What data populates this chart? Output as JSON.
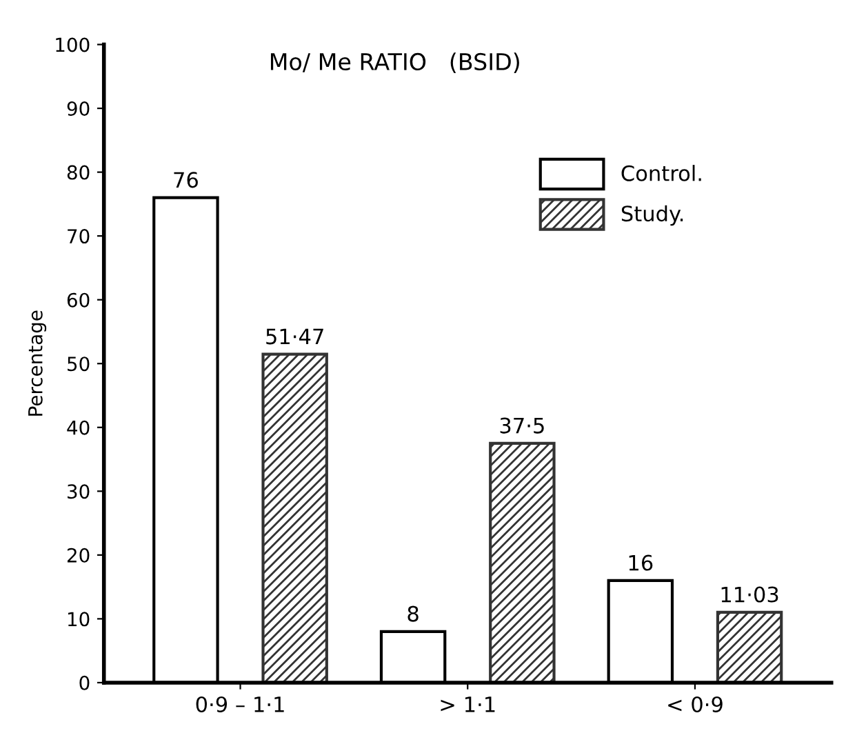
{
  "chart_data": {
    "type": "bar",
    "title": "Mo/ Me RATIO   (BSID)",
    "ylabel": "Percentage",
    "categories": [
      "0·9 – 1·1",
      "> 1·1",
      "< 0·9"
    ],
    "series": [
      {
        "name": "Control.",
        "color": "#ffffff",
        "values": [
          76,
          8,
          16
        ],
        "value_labels": [
          "76",
          "8",
          "16"
        ]
      },
      {
        "name": "Study.",
        "color": "#333333",
        "values": [
          51.47,
          37.5,
          11.03
        ],
        "value_labels": [
          "51·47",
          "37·5",
          "11·03"
        ]
      }
    ],
    "ylim": [
      0,
      100
    ],
    "yticks": [
      0,
      10,
      20,
      30,
      40,
      50,
      60,
      70,
      80,
      90,
      100
    ],
    "grid": false,
    "legend": "top right"
  }
}
